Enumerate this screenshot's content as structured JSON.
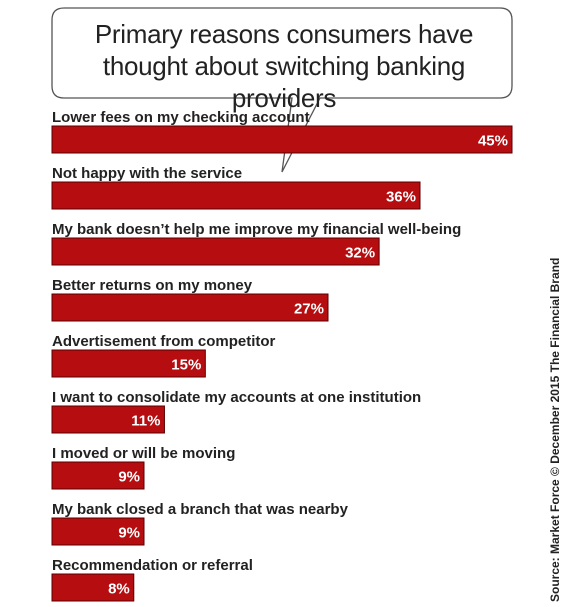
{
  "title": "Primary reasons consumers have thought about switching banking providers",
  "source": "Source: Market Force © December 2015 The Financial Brand",
  "colors": {
    "bar": "#b50d10",
    "bar_border": "#5a0000",
    "text": "#222222",
    "value_label": "#ffffff"
  },
  "chart_data": {
    "type": "bar",
    "orientation": "horizontal",
    "title": "Primary reasons consumers have thought about switching banking providers",
    "categories": [
      "Lower fees on my checking account",
      "Not happy with the service",
      "My bank doesn’t help me improve my financial well-being",
      "Better returns on my money",
      "Advertisement from competitor",
      "I want to consolidate my accounts at one institution",
      "I moved or will be moving",
      "My bank closed a branch that was nearby",
      "Recommendation or referral"
    ],
    "values": [
      45,
      36,
      32,
      27,
      15,
      11,
      9,
      9,
      8
    ],
    "value_labels": [
      "45%",
      "36%",
      "32%",
      "27%",
      "15%",
      "11%",
      "9%",
      "9%",
      "8%"
    ],
    "unit": "%",
    "xlim": [
      0,
      45
    ],
    "grid": false,
    "legend": "none"
  }
}
